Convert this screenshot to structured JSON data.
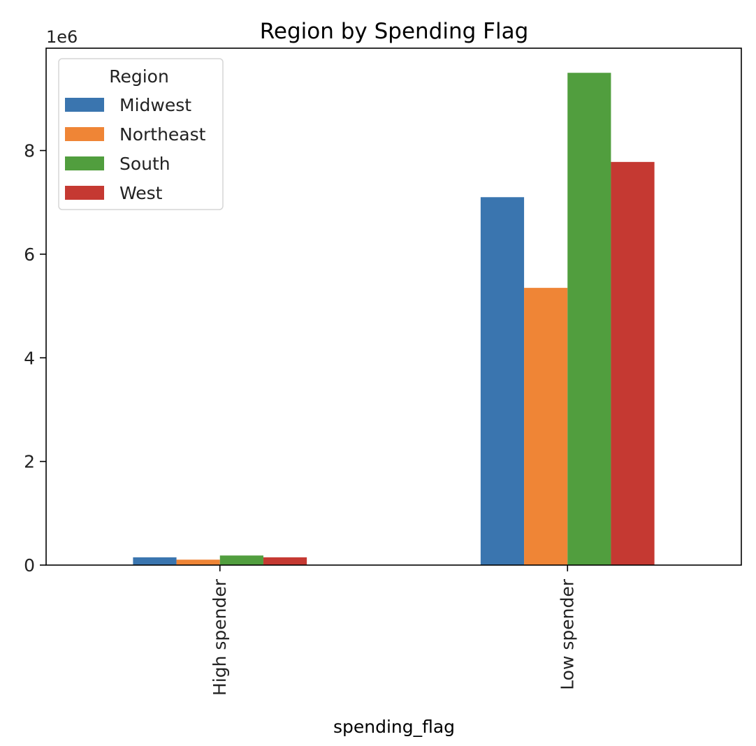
{
  "chart_data": {
    "type": "bar",
    "title": "Region by Spending Flag",
    "xlabel": "spending_flag",
    "ylabel": "",
    "y_offset_label": "1e6",
    "categories": [
      "High spender",
      "Low spender"
    ],
    "series": [
      {
        "name": "Midwest",
        "color": "#3a75af",
        "values": [
          150000,
          7100000
        ]
      },
      {
        "name": "Northeast",
        "color": "#ef8536",
        "values": [
          105000,
          5350000
        ]
      },
      {
        "name": "South",
        "color": "#519e3e",
        "values": [
          185000,
          9500000
        ]
      },
      {
        "name": "West",
        "color": "#c53932",
        "values": [
          150000,
          7780000
        ]
      }
    ],
    "yticks": [
      0,
      2,
      4,
      6,
      8
    ],
    "yscale": 1000000,
    "ylim": [
      0,
      9975000
    ],
    "legend": {
      "title": "Region",
      "placement": "top-left"
    },
    "grid": false
  }
}
